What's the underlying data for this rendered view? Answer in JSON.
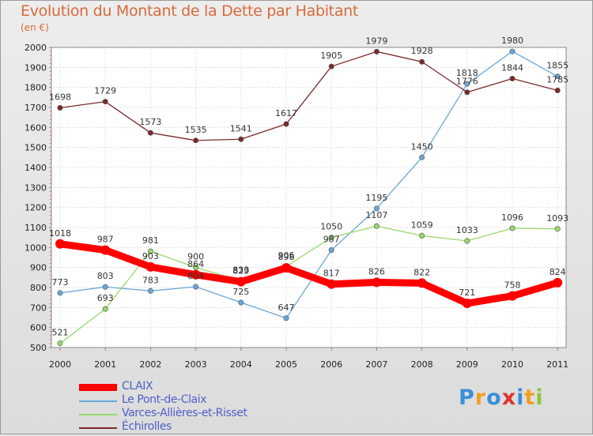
{
  "title": "Evolution du Montant de la Dette par Habitant",
  "unit": "(en €)",
  "chart_data": {
    "type": "line",
    "x": [
      "2000",
      "2001",
      "2002",
      "2003",
      "2004",
      "2005",
      "2006",
      "2007",
      "2008",
      "2009",
      "2010",
      "2011"
    ],
    "ylim": [
      500,
      2000
    ],
    "yticks": [
      500,
      600,
      700,
      800,
      900,
      1000,
      1100,
      1200,
      1300,
      1400,
      1500,
      1600,
      1700,
      1800,
      1900,
      2000
    ],
    "grid": true,
    "legend": "bottom-left",
    "series": [
      {
        "name": "CLAIX",
        "color": "#ff0000",
        "values": [
          1018,
          987,
          903,
          864,
          829,
          898,
          817,
          826,
          822,
          721,
          758,
          824
        ],
        "labels": [
          "1018",
          "987",
          "903",
          "864",
          "829",
          "898",
          "817",
          "826",
          "822",
          "721",
          "758",
          "824"
        ]
      },
      {
        "name": "Le Pont-de-Claix",
        "color": "#6aa6d8",
        "values": [
          773,
          803,
          783,
          804,
          725,
          647,
          987,
          1195,
          1450,
          1818,
          1980,
          1855
        ],
        "labels": [
          "773",
          "803",
          "783",
          "804",
          "725",
          "647",
          "987",
          "1195",
          "1450",
          "1818",
          "1980",
          "1855"
        ]
      },
      {
        "name": "Varces-Allières-et-Risset",
        "color": "#98d86c",
        "values": [
          521,
          693,
          981,
          900,
          833,
          906,
          1050,
          1107,
          1059,
          1033,
          1096,
          1093
        ],
        "labels": [
          "521",
          "693",
          "981",
          "900",
          "833",
          "906",
          "1050",
          "1107",
          "1059",
          "1033",
          "1096",
          "1093"
        ]
      },
      {
        "name": "Échirolles",
        "color": "#7a2a2a",
        "values": [
          1698,
          1729,
          1573,
          1535,
          1541,
          1617,
          1905,
          1979,
          1928,
          1776,
          1844,
          1785
        ],
        "labels": [
          "1698",
          "1729",
          "1573",
          "1535",
          "1541",
          "1617",
          "1905",
          "1979",
          "1928",
          "1776",
          "1844",
          "1785"
        ]
      }
    ]
  },
  "logo": {
    "letters": [
      "P",
      "r",
      "o",
      "x",
      "i",
      "t",
      "i"
    ],
    "colors": [
      "#3a8fd8",
      "#f0a020",
      "#3a8fd8",
      "#e03030",
      "#3a8fd8",
      "#f0a020",
      "#8cc83c"
    ]
  }
}
